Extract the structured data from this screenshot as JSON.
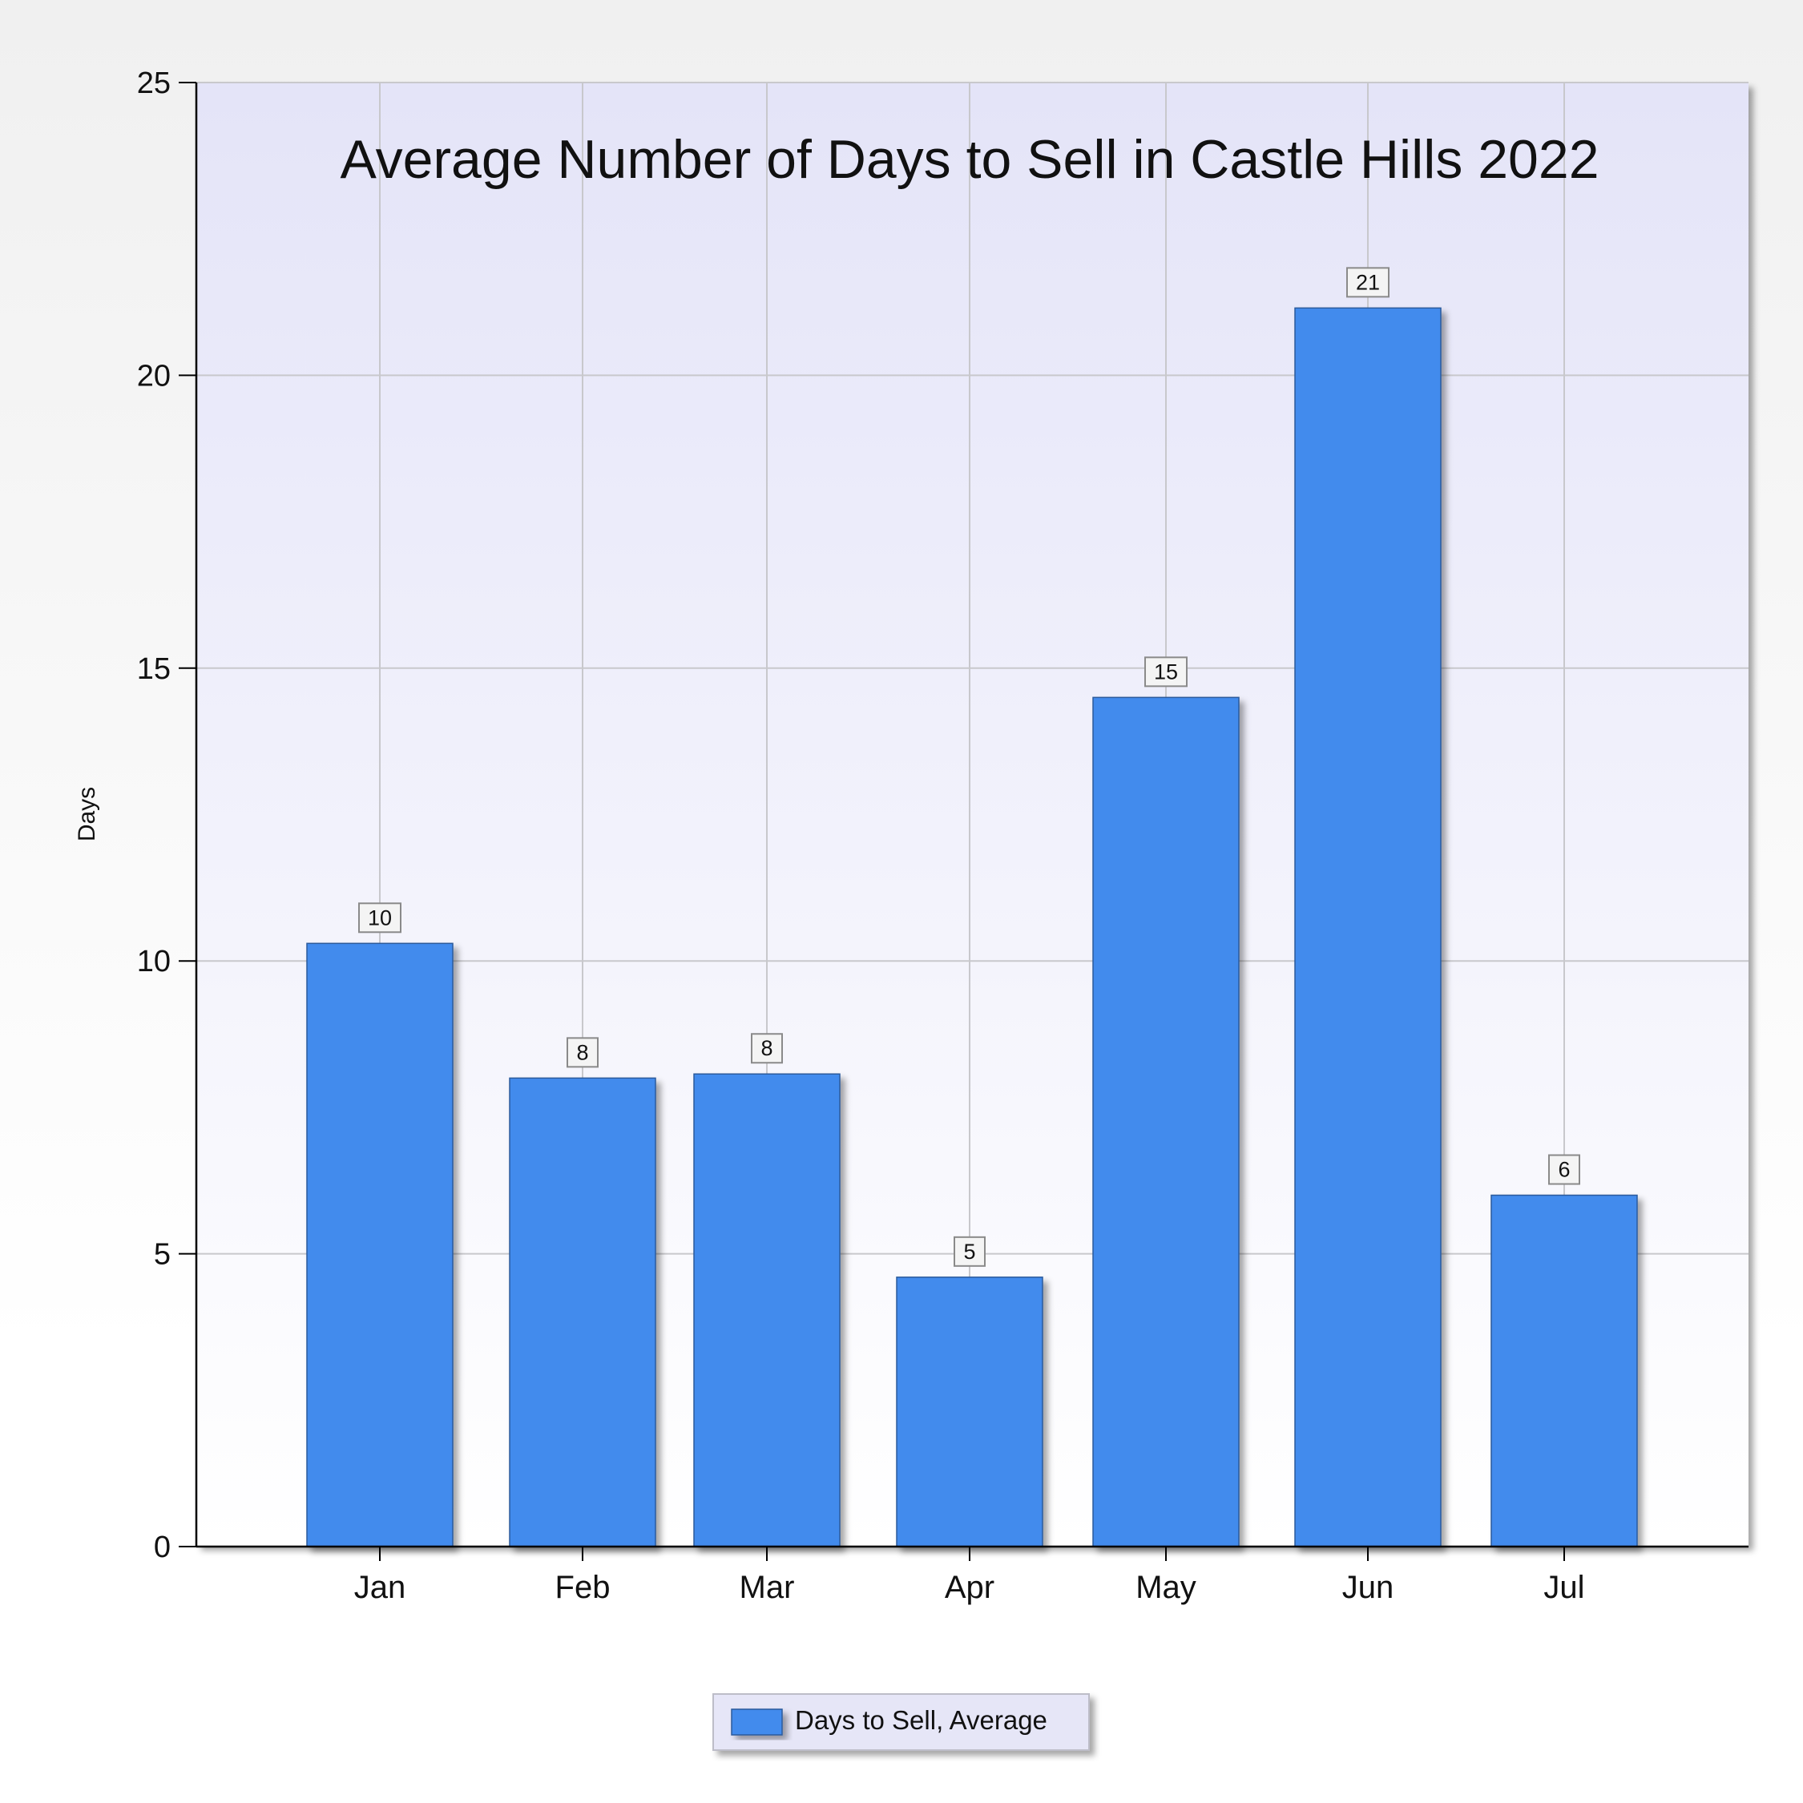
{
  "chart_data": {
    "type": "bar",
    "title": "Average Number of Days to Sell in Castle Hills 2022",
    "xlabel": "",
    "ylabel": "Days",
    "categories": [
      "Jan",
      "Feb",
      "Mar",
      "Apr",
      "May",
      "Jun",
      "Jul"
    ],
    "series": [
      {
        "name": "Days to Sell, Average",
        "values": [
          10.3,
          8.0,
          8.07,
          4.6,
          14.5,
          21.15,
          6.0
        ],
        "labels": [
          "10",
          "8",
          "8",
          "5",
          "15",
          "21",
          "6"
        ]
      }
    ],
    "ylim": [
      0,
      25
    ],
    "yticks": [
      "0",
      "5",
      "10",
      "15",
      "20",
      "25"
    ],
    "grid": true,
    "legend_position": "bottom-center",
    "colors": {
      "bar": "#428bed",
      "bar_stroke": "#2a5a9c",
      "plot_bg_top": "#e4e4f8",
      "plot_bg_bottom": "#ffffff",
      "gridline": "#c8c8cc",
      "legend_bg": "#e6e6f7"
    }
  }
}
